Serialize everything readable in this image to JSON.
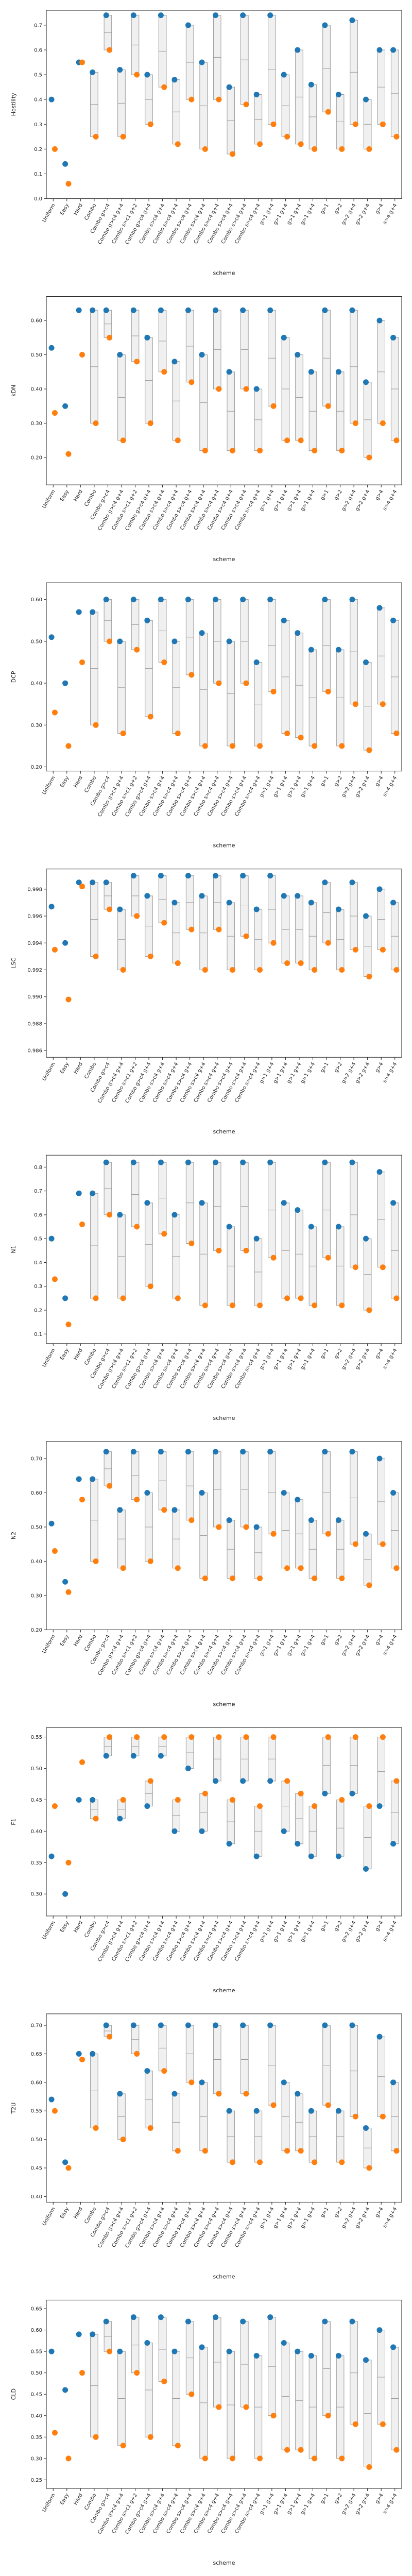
{
  "colors": {
    "blue": "#1f77b4",
    "orange": "#ff7f0e",
    "box_edge": "#9a9a9a",
    "box_fill": "#f0f0f0"
  },
  "chart_data": [
    {
      "type": "box",
      "ylabel": "Hostility",
      "xlabel": "scheme",
      "ylim": [
        0,
        0.76
      ],
      "yticks": [
        0.0,
        0.1,
        0.2,
        0.3,
        0.4,
        0.5,
        0.6,
        0.7
      ],
      "categories": [
        "Uniform",
        "Easy",
        "Hard",
        "Combo",
        "Combo g>c4",
        "Combo g>c4 g+4",
        "Combo s>c1 g+2",
        "Combo g>c4 g+4",
        "Combo s>c4 g+4",
        "Combo s>c4 g+4",
        "Combo s>c4 g+4",
        "Combo s>c4 g+4",
        "Combo s>c4 g+4",
        "Combo s>c4 g+4",
        "Combo s>c4 g+4",
        "Combo s>c4 g+4",
        "g>1 g+4",
        "g>1 g+4",
        "g>1 g+4",
        "g>1 g+4",
        "g>1",
        "g>2",
        "g>2 g+4",
        "g>2 g+4",
        "g>4",
        "s>4 g+4"
      ],
      "series": [
        {
          "values": [
            0.4,
            0.14,
            0.55,
            0.51,
            0.74,
            0.52,
            0.74,
            0.5,
            0.74,
            0.48,
            0.7,
            0.55,
            0.74,
            0.45,
            0.74,
            0.42,
            0.74,
            0.5,
            0.6,
            0.46,
            0.7,
            0.42,
            0.72,
            0.4,
            0.6,
            0.6
          ]
        },
        {
          "values": [
            0.2,
            0.06,
            0.55,
            0.25,
            0.6,
            0.25,
            0.5,
            0.3,
            0.45,
            0.22,
            0.4,
            0.2,
            0.4,
            0.18,
            0.38,
            0.22,
            0.3,
            0.25,
            0.22,
            0.2,
            0.35,
            0.2,
            0.3,
            0.2,
            0.3,
            0.25
          ]
        }
      ]
    },
    {
      "type": "box",
      "ylabel": "kDN",
      "xlabel": "scheme",
      "ylim": [
        0.12,
        0.67
      ],
      "yticks": [
        0.2,
        0.3,
        0.4,
        0.5,
        0.6
      ],
      "categories": [
        "Uniform",
        "Easy",
        "Hard",
        "Combo",
        "Combo g>c4",
        "Combo g>c4 g+4",
        "Combo s>c1 g+2",
        "Combo g>c4 g+4",
        "Combo s>c4 g+4",
        "Combo s>c4 g+4",
        "Combo s>c4 g+4",
        "Combo s>c4 g+4",
        "Combo s>c4 g+4",
        "Combo s>c4 g+4",
        "Combo s>c4 g+4",
        "Combo s>c4 g+4",
        "g>1 g+4",
        "g>1 g+4",
        "g>1 g+4",
        "g>1 g+4",
        "g>1",
        "g>2",
        "g>2 g+4",
        "g>2 g+4",
        "g>4",
        "s>4 g+4"
      ],
      "series": [
        {
          "values": [
            0.52,
            0.35,
            0.63,
            0.63,
            0.63,
            0.5,
            0.63,
            0.55,
            0.63,
            0.48,
            0.63,
            0.5,
            0.63,
            0.45,
            0.63,
            0.4,
            0.63,
            0.55,
            0.5,
            0.45,
            0.63,
            0.45,
            0.63,
            0.42,
            0.6,
            0.55
          ]
        },
        {
          "values": [
            0.33,
            0.21,
            0.5,
            0.3,
            0.55,
            0.25,
            0.48,
            0.3,
            0.45,
            0.25,
            0.42,
            0.22,
            0.4,
            0.22,
            0.4,
            0.22,
            0.35,
            0.25,
            0.25,
            0.22,
            0.35,
            0.22,
            0.3,
            0.2,
            0.3,
            0.25
          ]
        }
      ]
    },
    {
      "type": "box",
      "ylabel": "DCP",
      "xlabel": "scheme",
      "ylim": [
        0.19,
        0.64
      ],
      "yticks": [
        0.2,
        0.3,
        0.4,
        0.5,
        0.6
      ],
      "categories": [
        "Uniform",
        "Easy",
        "Hard",
        "Combo",
        "Combo g>c4",
        "Combo g>c4 g+4",
        "Combo s>c1 g+2",
        "Combo g>c4 g+4",
        "Combo s>c4 g+4",
        "Combo s>c4 g+4",
        "Combo s>c4 g+4",
        "Combo s>c4 g+4",
        "Combo s>c4 g+4",
        "Combo s>c4 g+4",
        "Combo s>c4 g+4",
        "Combo s>c4 g+4",
        "g>1 g+4",
        "g>1 g+4",
        "g>1 g+4",
        "g>1 g+4",
        "g>1",
        "g>2",
        "g>2 g+4",
        "g>2 g+4",
        "g>4",
        "s>4 g+4"
      ],
      "series": [
        {
          "values": [
            0.51,
            0.4,
            0.57,
            0.57,
            0.6,
            0.5,
            0.6,
            0.55,
            0.6,
            0.5,
            0.6,
            0.52,
            0.6,
            0.5,
            0.6,
            0.45,
            0.6,
            0.55,
            0.52,
            0.48,
            0.6,
            0.48,
            0.6,
            0.45,
            0.58,
            0.55
          ]
        },
        {
          "values": [
            0.33,
            0.25,
            0.45,
            0.3,
            0.5,
            0.28,
            0.48,
            0.32,
            0.45,
            0.28,
            0.42,
            0.25,
            0.4,
            0.25,
            0.4,
            0.25,
            0.38,
            0.28,
            0.27,
            0.25,
            0.38,
            0.25,
            0.35,
            0.24,
            0.35,
            0.28
          ]
        }
      ]
    },
    {
      "type": "box",
      "ylabel": "LSC",
      "xlabel": "scheme",
      "ylim": [
        0.9855,
        0.9995
      ],
      "yticks": [
        0.986,
        0.988,
        0.99,
        0.992,
        0.994,
        0.996,
        0.998
      ],
      "categories": [
        "Uniform",
        "Easy",
        "Hard",
        "Combo",
        "Combo g>c4",
        "Combo g>c4 g+4",
        "Combo s>c1 g+2",
        "Combo g>c4 g+4",
        "Combo s>c4 g+4",
        "Combo s>c4 g+4",
        "Combo s>c4 g+4",
        "Combo s>c4 g+4",
        "Combo s>c4 g+4",
        "Combo s>c4 g+4",
        "Combo s>c4 g+4",
        "Combo s>c4 g+4",
        "g>1 g+4",
        "g>1 g+4",
        "g>1 g+4",
        "g>1 g+4",
        "g>1",
        "g>2",
        "g>2 g+4",
        "g>2 g+4",
        "g>4",
        "s>4 g+4"
      ],
      "series": [
        {
          "values": [
            0.9967,
            0.994,
            0.9985,
            0.9985,
            0.9985,
            0.9965,
            0.999,
            0.9975,
            0.999,
            0.997,
            0.999,
            0.9975,
            0.999,
            0.997,
            0.999,
            0.9965,
            0.999,
            0.9975,
            0.9975,
            0.997,
            0.9985,
            0.9965,
            0.9985,
            0.996,
            0.998,
            0.997
          ]
        },
        {
          "values": [
            0.9935,
            0.9898,
            0.9982,
            0.993,
            0.9965,
            0.992,
            0.996,
            0.993,
            0.9955,
            0.9925,
            0.995,
            0.992,
            0.995,
            0.992,
            0.9945,
            0.992,
            0.994,
            0.9925,
            0.9925,
            0.992,
            0.994,
            0.992,
            0.9935,
            0.9915,
            0.9935,
            0.992
          ]
        }
      ]
    },
    {
      "type": "box",
      "ylabel": "N1",
      "xlabel": "scheme",
      "ylim": [
        0.06,
        0.85
      ],
      "yticks": [
        0.1,
        0.2,
        0.3,
        0.4,
        0.5,
        0.6,
        0.7,
        0.8
      ],
      "categories": [
        "Uniform",
        "Easy",
        "Hard",
        "Combo",
        "Combo g>c4",
        "Combo g>c4 g+4",
        "Combo s>c1 g+2",
        "Combo g>c4 g+4",
        "Combo s>c4 g+4",
        "Combo s>c4 g+4",
        "Combo s>c4 g+4",
        "Combo s>c4 g+4",
        "Combo s>c4 g+4",
        "Combo s>c4 g+4",
        "Combo s>c4 g+4",
        "Combo s>c4 g+4",
        "g>1 g+4",
        "g>1 g+4",
        "g>1 g+4",
        "g>1 g+4",
        "g>1",
        "g>2",
        "g>2 g+4",
        "g>2 g+4",
        "g>4",
        "s>4 g+4"
      ],
      "series": [
        {
          "values": [
            0.5,
            0.25,
            0.69,
            0.69,
            0.82,
            0.6,
            0.82,
            0.65,
            0.82,
            0.6,
            0.82,
            0.65,
            0.82,
            0.55,
            0.82,
            0.5,
            0.82,
            0.65,
            0.62,
            0.55,
            0.82,
            0.55,
            0.82,
            0.5,
            0.78,
            0.65
          ]
        },
        {
          "values": [
            0.33,
            0.14,
            0.56,
            0.25,
            0.6,
            0.25,
            0.55,
            0.3,
            0.52,
            0.25,
            0.48,
            0.22,
            0.45,
            0.22,
            0.45,
            0.22,
            0.42,
            0.25,
            0.25,
            0.22,
            0.42,
            0.22,
            0.38,
            0.2,
            0.38,
            0.25
          ]
        }
      ]
    },
    {
      "type": "box",
      "ylabel": "N2",
      "xlabel": "scheme",
      "ylim": [
        0.2,
        0.75
      ],
      "yticks": [
        0.2,
        0.3,
        0.4,
        0.5,
        0.6,
        0.7
      ],
      "categories": [
        "Uniform",
        "Easy",
        "Hard",
        "Combo",
        "Combo g>c4",
        "Combo g>c4 g+4",
        "Combo s>c1 g+2",
        "Combo g>c4 g+4",
        "Combo s>c4 g+4",
        "Combo s>c4 g+4",
        "Combo s>c4 g+4",
        "Combo s>c4 g+4",
        "Combo s>c4 g+4",
        "Combo s>c4 g+4",
        "Combo s>c4 g+4",
        "Combo s>c4 g+4",
        "g>1 g+4",
        "g>1 g+4",
        "g>1 g+4",
        "g>1 g+4",
        "g>1",
        "g>2",
        "g>2 g+4",
        "g>2 g+4",
        "g>4",
        "s>4 g+4"
      ],
      "series": [
        {
          "values": [
            0.51,
            0.34,
            0.64,
            0.64,
            0.72,
            0.55,
            0.72,
            0.6,
            0.72,
            0.55,
            0.72,
            0.6,
            0.72,
            0.52,
            0.72,
            0.5,
            0.72,
            0.6,
            0.58,
            0.52,
            0.72,
            0.52,
            0.72,
            0.48,
            0.7,
            0.6
          ]
        },
        {
          "values": [
            0.43,
            0.31,
            0.58,
            0.4,
            0.62,
            0.38,
            0.58,
            0.4,
            0.55,
            0.38,
            0.52,
            0.35,
            0.5,
            0.35,
            0.5,
            0.35,
            0.48,
            0.38,
            0.38,
            0.35,
            0.48,
            0.35,
            0.45,
            0.33,
            0.45,
            0.38
          ]
        }
      ]
    },
    {
      "type": "box",
      "ylabel": "F1",
      "xlabel": "scheme",
      "ylim": [
        0.265,
        0.565
      ],
      "yticks": [
        0.3,
        0.35,
        0.4,
        0.45,
        0.5,
        0.55
      ],
      "categories": [
        "Uniform",
        "Easy",
        "Hard",
        "Combo",
        "Combo g>c4",
        "Combo g>c4 g+4",
        "Combo s>c1 g+2",
        "Combo g>c4 g+4",
        "Combo s>c4 g+4",
        "Combo s>c4 g+4",
        "Combo s>c4 g+4",
        "Combo s>c4 g+4",
        "Combo s>c4 g+4",
        "Combo s>c4 g+4",
        "Combo s>c4 g+4",
        "Combo s>c4 g+4",
        "g>1 g+4",
        "g>1 g+4",
        "g>1 g+4",
        "g>1 g+4",
        "g>1",
        "g>2",
        "g>2 g+4",
        "g>2 g+4",
        "g>4",
        "s>4 g+4"
      ],
      "series": [
        {
          "values": [
            0.36,
            0.3,
            0.45,
            0.45,
            0.52,
            0.42,
            0.52,
            0.44,
            0.52,
            0.4,
            0.5,
            0.4,
            0.48,
            0.38,
            0.48,
            0.36,
            0.48,
            0.4,
            0.38,
            0.36,
            0.46,
            0.36,
            0.46,
            0.34,
            0.44,
            0.38
          ]
        },
        {
          "values": [
            0.44,
            0.35,
            0.51,
            0.42,
            0.55,
            0.45,
            0.55,
            0.48,
            0.55,
            0.45,
            0.55,
            0.46,
            0.55,
            0.45,
            0.55,
            0.44,
            0.55,
            0.48,
            0.46,
            0.44,
            0.55,
            0.45,
            0.55,
            0.44,
            0.55,
            0.48
          ]
        }
      ]
    },
    {
      "type": "box",
      "ylabel": "T2U",
      "xlabel": "scheme",
      "ylim": [
        0.39,
        0.72
      ],
      "yticks": [
        0.4,
        0.45,
        0.5,
        0.55,
        0.6,
        0.65,
        0.7
      ],
      "categories": [
        "Uniform",
        "Easy",
        "Hard",
        "Combo",
        "Combo g>c4",
        "Combo g>c4 g+4",
        "Combo s>c1 g+2",
        "Combo g>c4 g+4",
        "Combo s>c4 g+4",
        "Combo s>c4 g+4",
        "Combo s>c4 g+4",
        "Combo s>c4 g+4",
        "Combo s>c4 g+4",
        "Combo s>c4 g+4",
        "Combo s>c4 g+4",
        "Combo s>c4 g+4",
        "g>1 g+4",
        "g>1 g+4",
        "g>1 g+4",
        "g>1 g+4",
        "g>1",
        "g>2",
        "g>2 g+4",
        "g>2 g+4",
        "g>4",
        "s>4 g+4"
      ],
      "series": [
        {
          "values": [
            0.57,
            0.46,
            0.65,
            0.65,
            0.7,
            0.58,
            0.7,
            0.62,
            0.7,
            0.58,
            0.7,
            0.6,
            0.7,
            0.55,
            0.7,
            0.55,
            0.7,
            0.6,
            0.58,
            0.55,
            0.7,
            0.55,
            0.7,
            0.52,
            0.68,
            0.6
          ]
        },
        {
          "values": [
            0.55,
            0.45,
            0.64,
            0.52,
            0.68,
            0.5,
            0.65,
            0.52,
            0.62,
            0.48,
            0.6,
            0.48,
            0.58,
            0.46,
            0.58,
            0.46,
            0.56,
            0.48,
            0.48,
            0.46,
            0.56,
            0.46,
            0.54,
            0.45,
            0.54,
            0.48
          ]
        }
      ]
    },
    {
      "type": "box",
      "ylabel": "CLD",
      "xlabel": "scheme",
      "ylim": [
        0.23,
        0.67
      ],
      "yticks": [
        0.25,
        0.3,
        0.35,
        0.4,
        0.45,
        0.5,
        0.55,
        0.6,
        0.65
      ],
      "categories": [
        "Uniform",
        "Easy",
        "Hard",
        "Combo",
        "Combo g>c4",
        "Combo g>c4 g+4",
        "Combo s>c1 g+2",
        "Combo g>c4 g+4",
        "Combo s>c4 g+4",
        "Combo s>c4 g+4",
        "Combo s>c4 g+4",
        "Combo s>c4 g+4",
        "Combo s>c4 g+4",
        "Combo s>c4 g+4",
        "Combo s>c4 g+4",
        "Combo s>c4 g+4",
        "g>1 g+4",
        "g>1 g+4",
        "g>1 g+4",
        "g>1 g+4",
        "g>1",
        "g>2",
        "g>2 g+4",
        "g>2 g+4",
        "g>4",
        "s>4 g+4"
      ],
      "series": [
        {
          "values": [
            0.55,
            0.46,
            0.59,
            0.59,
            0.62,
            0.55,
            0.63,
            0.57,
            0.63,
            0.55,
            0.62,
            0.56,
            0.63,
            0.55,
            0.62,
            0.54,
            0.63,
            0.57,
            0.55,
            0.54,
            0.62,
            0.54,
            0.62,
            0.53,
            0.6,
            0.56
          ]
        },
        {
          "values": [
            0.36,
            0.3,
            0.5,
            0.35,
            0.55,
            0.33,
            0.5,
            0.35,
            0.48,
            0.33,
            0.45,
            0.3,
            0.42,
            0.3,
            0.42,
            0.3,
            0.4,
            0.32,
            0.32,
            0.3,
            0.4,
            0.3,
            0.38,
            0.28,
            0.38,
            0.32
          ]
        }
      ]
    }
  ]
}
